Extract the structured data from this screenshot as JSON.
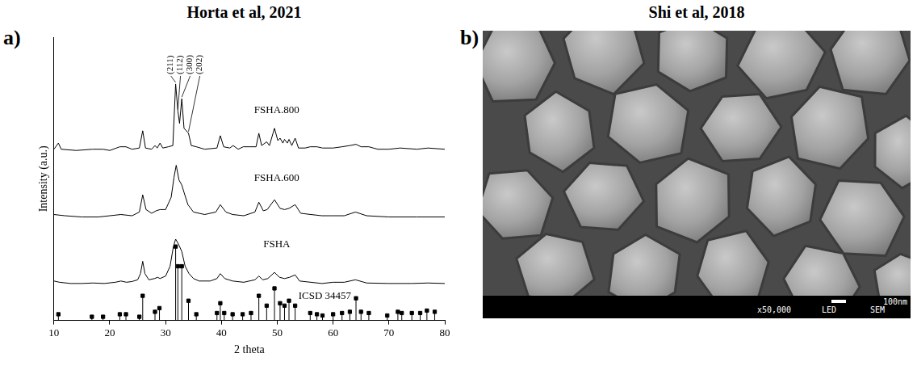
{
  "chart_data": {
    "type": "line",
    "title": "Horta et al, 2021",
    "x_label": "2 theta",
    "y_label": "Intensity (a.u.)",
    "xlim": [
      10,
      80
    ],
    "xticks": [
      10,
      20,
      30,
      40,
      50,
      60,
      70,
      80
    ],
    "ylim": [
      0,
      115
    ],
    "tick_labels": "x",
    "grid": false,
    "series": [
      {
        "name": "FSHA.800",
        "color": "#000000",
        "line_style": "solid",
        "x": [
          10,
          10.8,
          11.3,
          14,
          16.9,
          18.8,
          20,
          21.8,
          22.9,
          24,
          25.3,
          25.9,
          26.4,
          27.5,
          28.1,
          28.5,
          29,
          29.5,
          30.5,
          31.3,
          31.8,
          32.2,
          32.5,
          32.9,
          33.3,
          34.1,
          34.6,
          35.5,
          37,
          39.2,
          39.8,
          40.4,
          41.5,
          42.1,
          43,
          43.9,
          45.3,
          46.2,
          46.7,
          47.2,
          48.1,
          48.6,
          49.5,
          50.1,
          50.5,
          51,
          51.3,
          51.8,
          52.1,
          52.6,
          53.2,
          53.8,
          55,
          55.9,
          57.1,
          58.1,
          60,
          61.6,
          63,
          64.1,
          65,
          66.4,
          68,
          70,
          72,
          75,
          77,
          80
        ],
        "values": [
          69.5,
          72,
          69.5,
          69,
          69.5,
          69.5,
          69,
          70.5,
          70.5,
          69.5,
          70,
          77,
          70,
          69.5,
          71,
          70,
          72,
          70,
          70.5,
          71,
          96,
          85,
          80,
          90,
          78,
          76,
          71,
          70.5,
          69.5,
          70,
          75,
          70.5,
          70,
          71,
          69.5,
          70.5,
          70.5,
          70.5,
          76,
          71,
          72.5,
          71,
          78,
          73,
          74,
          72,
          73.5,
          72,
          73.5,
          71,
          74,
          70,
          70,
          70.5,
          70.5,
          70,
          70,
          70.5,
          71,
          71.5,
          70.5,
          70.5,
          69.5,
          69.5,
          70,
          69.5,
          70,
          69.5
        ]
      },
      {
        "name": "FSHA.600",
        "color": "#000000",
        "line_style": "solid",
        "x": [
          10,
          12,
          15,
          18,
          20,
          22,
          24,
          25.3,
          25.9,
          26.5,
          27.5,
          28.3,
          29,
          30,
          31,
          31.5,
          31.9,
          32.4,
          32.9,
          33.3,
          34,
          35,
          37,
          39,
          39.8,
          40.8,
          42,
          44,
          46,
          46.7,
          47.5,
          48.2,
          49.5,
          50.5,
          51.3,
          52.1,
          53.2,
          54.2,
          56,
          58,
          60,
          62,
          64,
          66,
          70,
          75,
          80
        ],
        "values": [
          43,
          42.5,
          42,
          42,
          42.5,
          43,
          42.5,
          44,
          51,
          45,
          43.5,
          44.5,
          45,
          45,
          50,
          58,
          63,
          57,
          55,
          52,
          47,
          44,
          43,
          44,
          47,
          44,
          43,
          42.5,
          44,
          48,
          44.5,
          45,
          49,
          45.5,
          45,
          45.5,
          47,
          43.5,
          43,
          42.5,
          42.5,
          42.5,
          44,
          42.5,
          42,
          42,
          42
        ]
      },
      {
        "name": "FSHA",
        "color": "#000000",
        "line_style": "solid",
        "x": [
          10,
          11,
          13,
          15,
          17,
          19,
          21,
          22,
          23,
          24,
          25,
          25.5,
          25.9,
          26.3,
          27,
          28,
          28.6,
          29,
          30,
          30.8,
          31.4,
          31.8,
          32.3,
          32.9,
          33.5,
          34.2,
          35,
          36,
          38,
          39.2,
          39.8,
          40.6,
          42,
          44,
          46,
          46.7,
          47.4,
          48.3,
          49.5,
          50.4,
          51.3,
          52.2,
          53.2,
          54,
          56,
          58,
          60,
          62,
          64,
          66,
          70,
          74,
          77,
          80
        ],
        "values": [
          16,
          15.5,
          15,
          15,
          15.2,
          15,
          15.5,
          16,
          15.5,
          15.8,
          16.5,
          19,
          24,
          19,
          16.5,
          17,
          17.5,
          17,
          18,
          22,
          30,
          33,
          31,
          28,
          22,
          19,
          17,
          16,
          16,
          17,
          19,
          17,
          16,
          15.5,
          16.5,
          18,
          16.5,
          17,
          19.5,
          17.5,
          17,
          17.5,
          18.5,
          16,
          15.5,
          15,
          15.5,
          15.5,
          16.5,
          15.2,
          15,
          15,
          15.2,
          15
        ]
      },
      {
        "name": "ICSD 34457",
        "type": "stick",
        "marker": "square",
        "color": "#000000",
        "x": [
          10.8,
          16.8,
          18.8,
          21.8,
          22.9,
          25.3,
          25.9,
          28.1,
          28.9,
          31.8,
          32.2,
          32.9,
          34.1,
          35.5,
          39.2,
          39.8,
          40.5,
          42,
          43.8,
          45.3,
          46.7,
          48.1,
          49.5,
          50.5,
          51.3,
          52.1,
          53.2,
          55.9,
          57.1,
          58.1,
          60,
          61.6,
          63,
          64.1,
          65,
          66.4,
          69.7,
          71.6,
          72.3,
          74.1,
          75.6,
          76.8,
          78.2
        ],
        "values": [
          2.5,
          1.5,
          1.5,
          2.5,
          2.5,
          1.5,
          10,
          3.5,
          5,
          30,
          22,
          22,
          8,
          2.5,
          3,
          7,
          3,
          2.5,
          2.5,
          3,
          10,
          6,
          13,
          7,
          6,
          8,
          6,
          3,
          2.5,
          2,
          2.5,
          3,
          3.5,
          9,
          3.5,
          3,
          2,
          3.5,
          3,
          3,
          3,
          4,
          3.5
        ]
      }
    ],
    "annotations": [
      {
        "text": "(211)",
        "x": 31.8
      },
      {
        "text": "(112)",
        "x": 32.2
      },
      {
        "text": "(300)",
        "x": 32.9
      },
      {
        "text": "(202)",
        "x": 34.1
      }
    ]
  },
  "panel_letters": [
    "a)",
    "b)"
  ],
  "image": {
    "title": "Shi et al, 2018",
    "info_texts": [
      "x50,000",
      "LED",
      "SEM"
    ],
    "scale_label": "100nm"
  }
}
